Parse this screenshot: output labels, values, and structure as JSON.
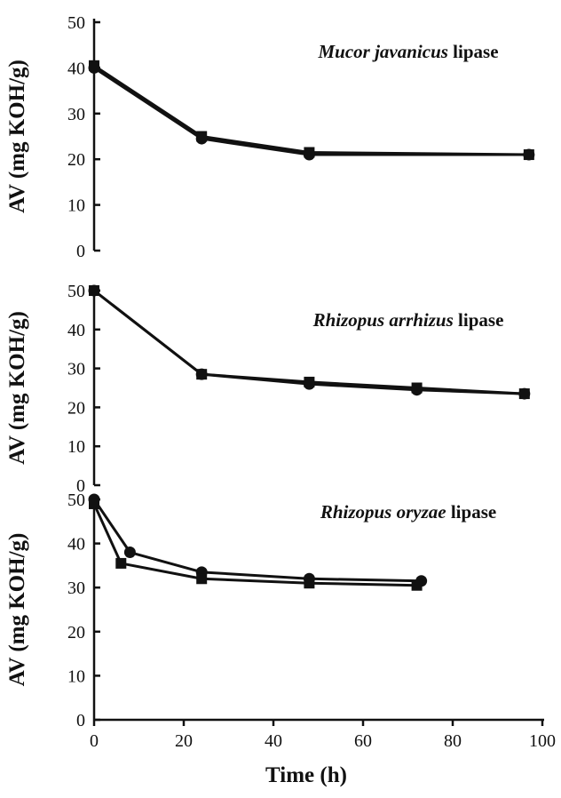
{
  "chart_data": [
    {
      "type": "line",
      "title_italic": "Mucor javanicus",
      "title_rest": " lipase",
      "ylabel": "AV (mg KOH/g)",
      "ylim": [
        0,
        50
      ],
      "yticks": [
        0,
        10,
        20,
        30,
        40,
        50
      ],
      "xlim": [
        0,
        100
      ],
      "series": [
        {
          "marker": "square",
          "x": [
            0,
            24,
            48,
            97
          ],
          "y": [
            40.5,
            25,
            21.5,
            21
          ]
        },
        {
          "marker": "circle",
          "x": [
            0,
            24,
            48,
            97
          ],
          "y": [
            40,
            24.5,
            21,
            21
          ]
        }
      ]
    },
    {
      "type": "line",
      "title_italic": "Rhizopus arrhizus",
      "title_rest": " lipase",
      "ylabel": "AV (mg KOH/g)",
      "ylim": [
        0,
        50
      ],
      "yticks": [
        0,
        10,
        20,
        30,
        40,
        50
      ],
      "xlim": [
        0,
        100
      ],
      "series": [
        {
          "marker": "square",
          "x": [
            0,
            24,
            48,
            72,
            96
          ],
          "y": [
            50,
            28.5,
            26.5,
            25,
            23.5
          ]
        },
        {
          "marker": "circle",
          "x": [
            0,
            24,
            48,
            72,
            96
          ],
          "y": [
            50,
            28.5,
            26,
            24.5,
            23.5
          ]
        }
      ]
    },
    {
      "type": "line",
      "title_italic": "Rhizopus oryzae",
      "title_rest": " lipase",
      "ylabel": "AV (mg KOH/g)",
      "ylim": [
        0,
        50
      ],
      "yticks": [
        0,
        10,
        20,
        30,
        40,
        50
      ],
      "xlim": [
        0,
        100
      ],
      "xticks": [
        0,
        20,
        40,
        60,
        80,
        100
      ],
      "xlabel": "Time (h)",
      "series": [
        {
          "marker": "circle",
          "x": [
            0,
            8,
            24,
            48,
            73
          ],
          "y": [
            50,
            38,
            33.5,
            32,
            31.5
          ]
        },
        {
          "marker": "square",
          "x": [
            0,
            6,
            24,
            48,
            72
          ],
          "y": [
            49,
            35.5,
            32,
            31,
            30.5
          ]
        }
      ]
    }
  ]
}
